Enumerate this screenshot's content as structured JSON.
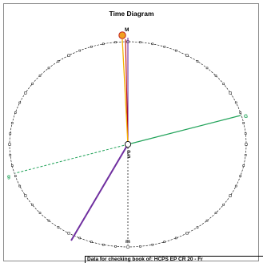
{
  "title": "Time Diagram",
  "labels": {
    "M": "M",
    "G": "G",
    "g": "g",
    "m": "m",
    "P": "P",
    "S": "S"
  },
  "colors": {
    "circle": "#000000",
    "green_line": "#22a35a",
    "purple_line": "#7030a0",
    "red_line": "#c00000",
    "orange_line": "#f4b000",
    "sun_fill": "#f0a020",
    "sun_stroke": "#c02020",
    "tick_fill": "#ffffff"
  },
  "footer": "Data for checking book of: HCPS EP CR 20 - Fr"
}
